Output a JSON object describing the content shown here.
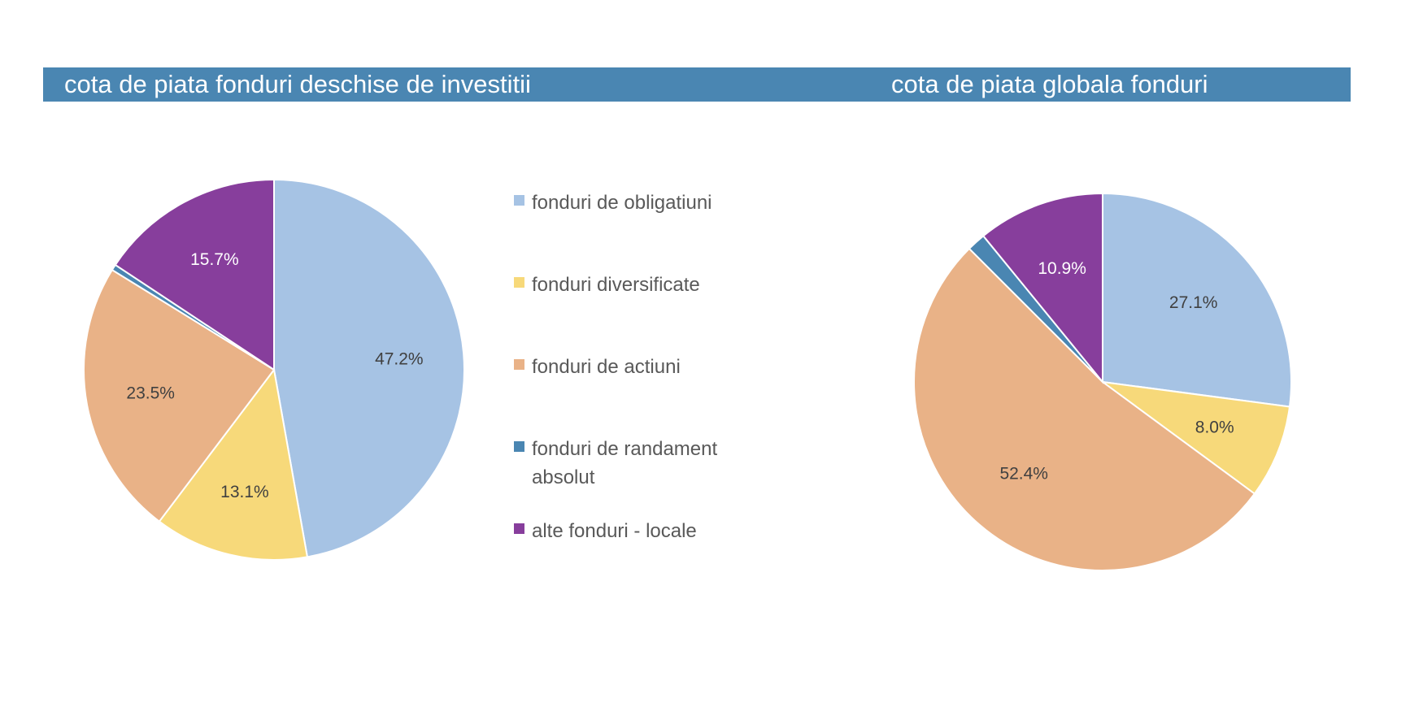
{
  "header": {
    "left_title": "cota de piata fonduri deschise de investitii",
    "right_title": "cota de piata globala fonduri"
  },
  "legend": [
    {
      "label": "fonduri de obligatiuni",
      "color": "#a6c3e4"
    },
    {
      "label": "fonduri diversificate",
      "color": "#f7d97a"
    },
    {
      "label": "fonduri de actiuni",
      "color": "#e9b287"
    },
    {
      "label": "fonduri de randament absolut",
      "color": "#4a86b2"
    },
    {
      "label": "alte fonduri - locale",
      "color": "#873e9c"
    }
  ],
  "chart_data": [
    {
      "type": "pie",
      "title": "cota de piata fonduri deschise de investitii",
      "categories": [
        "fonduri de obligatiuni",
        "fonduri diversificate",
        "fonduri de actiuni",
        "fonduri de randament absolut",
        "alte fonduri - locale"
      ],
      "values": [
        47.2,
        13.1,
        23.5,
        0.5,
        15.7
      ],
      "labels": [
        "47.2%",
        "13.1%",
        "23.5%",
        "",
        "15.7%"
      ],
      "colors": [
        "#a6c3e4",
        "#f7d97a",
        "#e9b287",
        "#4a86b2",
        "#873e9c"
      ],
      "legend_position": "right"
    },
    {
      "type": "pie",
      "title": "cota de piata globala fonduri",
      "categories": [
        "fonduri de obligatiuni",
        "fonduri diversificate",
        "fonduri de actiuni",
        "fonduri de randament absolut",
        "alte fonduri - locale"
      ],
      "values": [
        27.1,
        8.0,
        52.4,
        1.6,
        10.9
      ],
      "labels": [
        "27.1%",
        "8.0%",
        "52.4%",
        "",
        "10.9%"
      ],
      "colors": [
        "#a6c3e4",
        "#f7d97a",
        "#e9b287",
        "#4a86b2",
        "#873e9c"
      ]
    }
  ]
}
